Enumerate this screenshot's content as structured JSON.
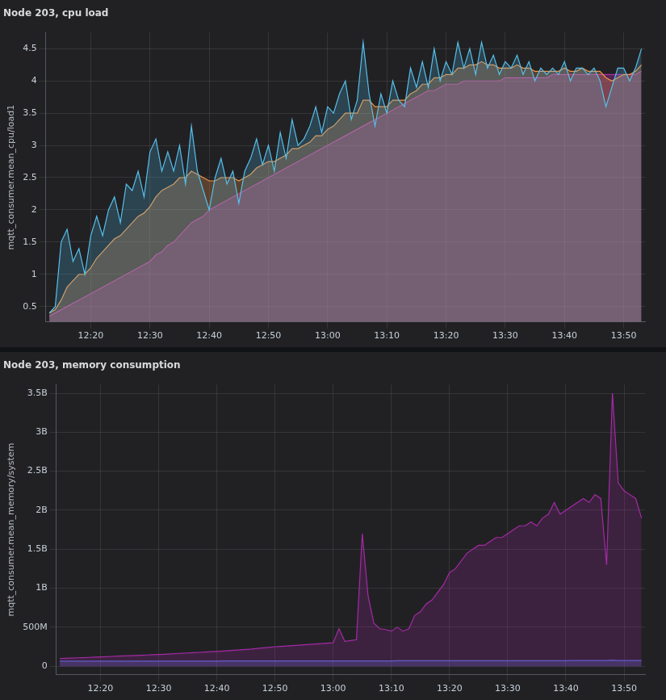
{
  "chart_data": [
    {
      "type": "line",
      "title": "Node 203, cpu load",
      "y_label": "mqtt_consumer.mean_cpu/load1",
      "grid": true,
      "x": [
        733,
        734,
        735,
        736,
        737,
        738,
        739,
        740,
        741,
        742,
        743,
        744,
        745,
        746,
        747,
        748,
        749,
        750,
        751,
        752,
        753,
        754,
        755,
        756,
        757,
        758,
        759,
        760,
        761,
        762,
        763,
        764,
        765,
        766,
        767,
        768,
        769,
        770,
        771,
        772,
        773,
        774,
        775,
        776,
        777,
        778,
        779,
        780,
        781,
        782,
        783,
        784,
        785,
        786,
        787,
        788,
        789,
        790,
        791,
        792,
        793,
        794,
        795,
        796,
        797,
        798,
        799,
        800,
        801,
        802,
        803,
        804,
        805,
        806,
        807,
        808,
        809,
        810,
        811,
        812,
        813,
        814,
        815,
        816,
        817,
        818,
        819,
        820,
        821,
        822,
        823,
        824,
        825,
        826,
        827,
        828,
        829,
        830,
        831,
        832,
        833
      ],
      "xlim": [
        732.4,
        833.6
      ],
      "xticks": [
        {
          "value": 740,
          "label": "12:20"
        },
        {
          "value": 750,
          "label": "12:30"
        },
        {
          "value": 760,
          "label": "12:40"
        },
        {
          "value": 770,
          "label": "12:50"
        },
        {
          "value": 780,
          "label": "13:00"
        },
        {
          "value": 790,
          "label": "13:10"
        },
        {
          "value": 800,
          "label": "13:20"
        },
        {
          "value": 810,
          "label": "13:30"
        },
        {
          "value": 820,
          "label": "13:40"
        },
        {
          "value": 830,
          "label": "13:50"
        }
      ],
      "ylim": [
        0.26,
        4.75
      ],
      "yticks": [
        0.5,
        1,
        1.5,
        2,
        2.5,
        3,
        3.5,
        4,
        4.5
      ],
      "series": [
        {
          "color": "#56c1ec",
          "values": [
            0.4,
            0.5,
            1.5,
            1.7,
            1.2,
            1.4,
            1.0,
            1.6,
            1.9,
            1.6,
            2.0,
            2.2,
            1.8,
            2.4,
            2.3,
            2.6,
            2.2,
            2.9,
            3.1,
            2.6,
            2.9,
            2.6,
            3.0,
            2.4,
            3.3,
            2.6,
            2.3,
            2.0,
            2.5,
            2.8,
            2.4,
            2.6,
            2.1,
            2.6,
            2.8,
            3.1,
            2.7,
            3.0,
            2.6,
            3.2,
            2.8,
            3.4,
            3.0,
            3.1,
            3.3,
            3.6,
            3.2,
            3.6,
            3.5,
            3.8,
            4.0,
            3.4,
            3.7,
            4.6,
            3.8,
            3.3,
            3.8,
            3.5,
            4.0,
            3.7,
            3.6,
            4.2,
            3.9,
            4.3,
            3.9,
            4.5,
            4.0,
            4.3,
            4.1,
            4.6,
            4.2,
            4.5,
            4.1,
            4.6,
            4.2,
            4.4,
            4.1,
            4.3,
            4.2,
            4.4,
            4.1,
            4.3,
            4.0,
            4.2,
            4.1,
            4.2,
            4.1,
            4.3,
            4.0,
            4.2,
            4.2,
            4.1,
            4.2,
            4.0,
            3.6,
            3.9,
            4.2,
            4.2,
            4.0,
            4.2,
            4.5
          ]
        },
        {
          "color": "#f0964a",
          "values": [
            0.4,
            0.45,
            0.6,
            0.8,
            0.9,
            1.0,
            1.0,
            1.1,
            1.25,
            1.35,
            1.45,
            1.55,
            1.6,
            1.7,
            1.8,
            1.9,
            1.95,
            2.05,
            2.2,
            2.3,
            2.35,
            2.4,
            2.5,
            2.5,
            2.6,
            2.55,
            2.5,
            2.45,
            2.45,
            2.5,
            2.5,
            2.5,
            2.45,
            2.5,
            2.55,
            2.65,
            2.7,
            2.75,
            2.75,
            2.8,
            2.85,
            2.95,
            2.95,
            3.0,
            3.05,
            3.15,
            3.15,
            3.25,
            3.3,
            3.4,
            3.5,
            3.5,
            3.5,
            3.7,
            3.7,
            3.6,
            3.6,
            3.6,
            3.7,
            3.7,
            3.7,
            3.8,
            3.85,
            3.95,
            3.95,
            4.05,
            4.05,
            4.1,
            4.1,
            4.2,
            4.2,
            4.25,
            4.25,
            4.3,
            4.25,
            4.25,
            4.2,
            4.2,
            4.2,
            4.25,
            4.2,
            4.2,
            4.15,
            4.15,
            4.15,
            4.15,
            4.15,
            4.2,
            4.15,
            4.15,
            4.2,
            4.15,
            4.15,
            4.15,
            4.05,
            4.0,
            4.05,
            4.1,
            4.1,
            4.15,
            4.25
          ]
        },
        {
          "color": "#b22fa8",
          "values": [
            0.35,
            0.4,
            0.45,
            0.5,
            0.55,
            0.6,
            0.65,
            0.7,
            0.75,
            0.8,
            0.85,
            0.9,
            0.95,
            1.0,
            1.05,
            1.1,
            1.15,
            1.2,
            1.3,
            1.35,
            1.45,
            1.5,
            1.6,
            1.7,
            1.8,
            1.85,
            1.9,
            2.0,
            2.05,
            2.1,
            2.15,
            2.2,
            2.25,
            2.3,
            2.35,
            2.4,
            2.45,
            2.5,
            2.55,
            2.6,
            2.65,
            2.7,
            2.75,
            2.8,
            2.85,
            2.9,
            2.95,
            3.0,
            3.05,
            3.1,
            3.15,
            3.2,
            3.25,
            3.3,
            3.35,
            3.4,
            3.45,
            3.5,
            3.55,
            3.6,
            3.65,
            3.7,
            3.75,
            3.8,
            3.85,
            3.85,
            3.9,
            3.95,
            3.95,
            3.95,
            4.0,
            4.0,
            4.0,
            4.0,
            4.0,
            4.0,
            4.0,
            4.05,
            4.05,
            4.05,
            4.05,
            4.05,
            4.05,
            4.05,
            4.05,
            4.1,
            4.1,
            4.1,
            4.1,
            4.1,
            4.1,
            4.1,
            4.1,
            4.1,
            4.1,
            4.1,
            4.1,
            4.1,
            4.1,
            4.1,
            4.15
          ]
        }
      ]
    },
    {
      "type": "line",
      "title": "Node 203, memory consumption",
      "y_label": "mqtt_consumer.mean_memory/system",
      "grid": true,
      "x": [
        733,
        734,
        735,
        736,
        737,
        738,
        739,
        740,
        741,
        742,
        743,
        744,
        745,
        746,
        747,
        748,
        749,
        750,
        751,
        752,
        753,
        754,
        755,
        756,
        757,
        758,
        759,
        760,
        761,
        762,
        763,
        764,
        765,
        766,
        767,
        768,
        769,
        770,
        771,
        772,
        773,
        774,
        775,
        776,
        777,
        778,
        779,
        780,
        781,
        782,
        783,
        784,
        785,
        786,
        787,
        788,
        789,
        790,
        791,
        792,
        793,
        794,
        795,
        796,
        797,
        798,
        799,
        800,
        801,
        802,
        803,
        804,
        805,
        806,
        807,
        808,
        809,
        810,
        811,
        812,
        813,
        814,
        815,
        816,
        817,
        818,
        819,
        820,
        821,
        822,
        823,
        824,
        825,
        826,
        827,
        828,
        829,
        830,
        831,
        832,
        833
      ],
      "xlim": [
        732.4,
        833.6
      ],
      "xticks": [
        {
          "value": 740,
          "label": "12:20"
        },
        {
          "value": 750,
          "label": "12:30"
        },
        {
          "value": 760,
          "label": "12:40"
        },
        {
          "value": 770,
          "label": "12:50"
        },
        {
          "value": 780,
          "label": "13:00"
        },
        {
          "value": 790,
          "label": "13:10"
        },
        {
          "value": 800,
          "label": "13:20"
        },
        {
          "value": 810,
          "label": "13:30"
        },
        {
          "value": 820,
          "label": "13:40"
        },
        {
          "value": 830,
          "label": "13:50"
        }
      ],
      "ylim": [
        -110000000,
        3610000000
      ],
      "yticks": [
        0,
        {
          "value": 500000000,
          "label": "500M"
        },
        {
          "value": 1000000000,
          "label": "1B"
        },
        {
          "value": 1500000000,
          "label": "1.5B"
        },
        {
          "value": 2000000000,
          "label": "2B"
        },
        {
          "value": 2500000000,
          "label": "2.5B"
        },
        {
          "value": 3000000000,
          "label": "3B"
        },
        {
          "value": 3500000000,
          "label": "3.5B"
        }
      ],
      "series": [
        {
          "color": "#a52aa5",
          "values": [
            100000000,
            102000000,
            105000000,
            108000000,
            110000000,
            113000000,
            116000000,
            120000000,
            123000000,
            126000000,
            129000000,
            132000000,
            135000000,
            138000000,
            141000000,
            144000000,
            147000000,
            150000000,
            154000000,
            158000000,
            162000000,
            166000000,
            170000000,
            174000000,
            178000000,
            182000000,
            186000000,
            190000000,
            195000000,
            200000000,
            205000000,
            210000000,
            215000000,
            220000000,
            228000000,
            235000000,
            242000000,
            250000000,
            255000000,
            260000000,
            265000000,
            270000000,
            275000000,
            280000000,
            285000000,
            290000000,
            295000000,
            300000000,
            480000000,
            320000000,
            330000000,
            340000000,
            1700000000,
            900000000,
            550000000,
            480000000,
            470000000,
            450000000,
            500000000,
            450000000,
            480000000,
            650000000,
            700000000,
            800000000,
            850000000,
            950000000,
            1050000000,
            1200000000,
            1250000000,
            1350000000,
            1450000000,
            1500000000,
            1550000000,
            1550000000,
            1600000000,
            1650000000,
            1650000000,
            1700000000,
            1750000000,
            1800000000,
            1800000000,
            1850000000,
            1800000000,
            1900000000,
            1950000000,
            2100000000,
            1950000000,
            2000000000,
            2050000000,
            2100000000,
            2150000000,
            2100000000,
            2200000000,
            2150000000,
            1300000000,
            3500000000,
            2350000000,
            2250000000,
            2200000000,
            2150000000,
            1900000000
          ]
        },
        {
          "color": "#4f6fd6",
          "values": [
            65000000,
            65000000,
            65000000,
            65000000,
            65000000,
            65000000,
            65000000,
            65000000,
            66000000,
            66000000,
            66000000,
            66000000,
            66000000,
            66000000,
            66000000,
            66000000,
            66000000,
            66000000,
            66000000,
            66000000,
            66000000,
            66000000,
            66000000,
            66000000,
            66000000,
            66000000,
            66000000,
            66000000,
            68000000,
            68000000,
            68000000,
            68000000,
            68000000,
            68000000,
            68000000,
            68000000,
            68000000,
            68000000,
            68000000,
            68000000,
            68000000,
            68000000,
            68000000,
            68000000,
            68000000,
            68000000,
            68000000,
            68000000,
            68000000,
            68000000,
            68000000,
            68000000,
            68000000,
            68000000,
            68000000,
            68000000,
            68000000,
            68000000,
            70000000,
            70000000,
            70000000,
            70000000,
            70000000,
            70000000,
            70000000,
            70000000,
            70000000,
            70000000,
            70000000,
            70000000,
            70000000,
            70000000,
            70000000,
            70000000,
            70000000,
            70000000,
            70000000,
            70000000,
            70000000,
            70000000,
            70000000,
            70000000,
            70000000,
            70000000,
            70000000,
            70000000,
            70000000,
            70000000,
            72000000,
            72000000,
            72000000,
            72000000,
            72000000,
            72000000,
            72000000,
            78000000,
            72000000,
            72000000,
            72000000,
            72000000,
            72000000
          ]
        }
      ]
    }
  ]
}
